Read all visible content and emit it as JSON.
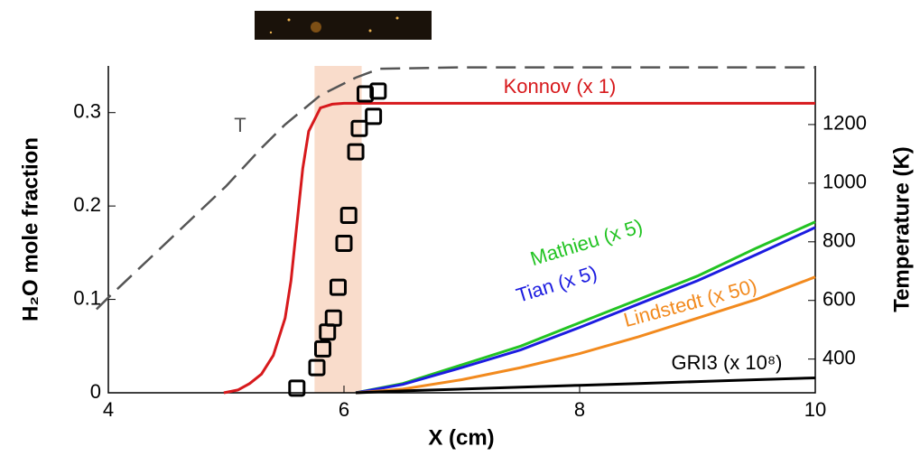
{
  "chart_data": {
    "type": "line",
    "xlabel": "X (cm)",
    "ylabel": "H₂O mole fraction",
    "y2label": "Temperature (K)",
    "xlim": [
      4,
      10
    ],
    "xticks": [
      4,
      6,
      8,
      10
    ],
    "ylim": [
      0,
      0.35
    ],
    "yticks": [
      0,
      0.1,
      0.2,
      0.3
    ],
    "y2lim": [
      285,
      1400
    ],
    "y2ticks": [
      400,
      600,
      800,
      1000,
      1200
    ],
    "highlight": {
      "xrange": [
        5.75,
        6.15
      ],
      "color": "#f9dccb"
    },
    "series": [
      {
        "name": "Konnov (x 1)",
        "color": "#d7191c",
        "style": "solid",
        "x": [
          4.98,
          5.1,
          5.2,
          5.3,
          5.4,
          5.5,
          5.55,
          5.6,
          5.65,
          5.7,
          5.8,
          5.9,
          6,
          7,
          8,
          9,
          10
        ],
        "values": [
          0,
          0.003,
          0.01,
          0.02,
          0.04,
          0.08,
          0.12,
          0.18,
          0.24,
          0.28,
          0.305,
          0.309,
          0.31,
          0.31,
          0.31,
          0.31,
          0.31
        ]
      },
      {
        "name": "Mathieu (x 5)",
        "color": "#22c322",
        "style": "solid",
        "x": [
          6.1,
          6.5,
          7,
          7.5,
          8,
          8.5,
          9,
          9.5,
          10
        ],
        "values": [
          0,
          0.01,
          0.03,
          0.05,
          0.075,
          0.1,
          0.125,
          0.155,
          0.183
        ]
      },
      {
        "name": "Tian (x 5)",
        "color": "#1c1ce0",
        "style": "solid",
        "x": [
          6.1,
          6.5,
          7,
          7.5,
          8,
          8.5,
          9,
          9.5,
          10
        ],
        "values": [
          0,
          0.009,
          0.027,
          0.046,
          0.07,
          0.095,
          0.12,
          0.148,
          0.177
        ]
      },
      {
        "name": "Lindstedt (x 50)",
        "color": "#f28a1e",
        "style": "solid",
        "x": [
          6.1,
          6.5,
          7,
          7.5,
          8,
          8.5,
          9,
          9.5,
          10
        ],
        "values": [
          0,
          0.004,
          0.014,
          0.027,
          0.042,
          0.06,
          0.08,
          0.1,
          0.124
        ]
      },
      {
        "name": "GRI3 (x 10⁸)",
        "color": "#000000",
        "style": "solid",
        "x": [
          6.1,
          6.5,
          7,
          7.5,
          8,
          8.5,
          9,
          9.5,
          10
        ],
        "values": [
          0,
          0.002,
          0.004,
          0.006,
          0.008,
          0.01,
          0.012,
          0.014,
          0.016
        ]
      },
      {
        "name": "T",
        "color": "#555555",
        "style": "dashed",
        "axis": "y2",
        "x": [
          3.9,
          4,
          4.5,
          5,
          5.3,
          5.5,
          5.8,
          6.1,
          6.3,
          7,
          10
        ],
        "values": [
          570,
          610,
          800,
          990,
          1120,
          1200,
          1300,
          1360,
          1390,
          1395,
          1395
        ]
      },
      {
        "type": "scatter",
        "marker": "square",
        "color": "#000000",
        "x": [
          5.6,
          5.77,
          5.82,
          5.86,
          5.91,
          5.95,
          6.0,
          6.04,
          6.1,
          6.13,
          6.18,
          6.25,
          6.29
        ],
        "values": [
          0.005,
          0.027,
          0.047,
          0.065,
          0.08,
          0.113,
          0.16,
          0.19,
          0.258,
          0.283,
          0.32,
          0.296,
          0.323
        ]
      }
    ]
  }
}
